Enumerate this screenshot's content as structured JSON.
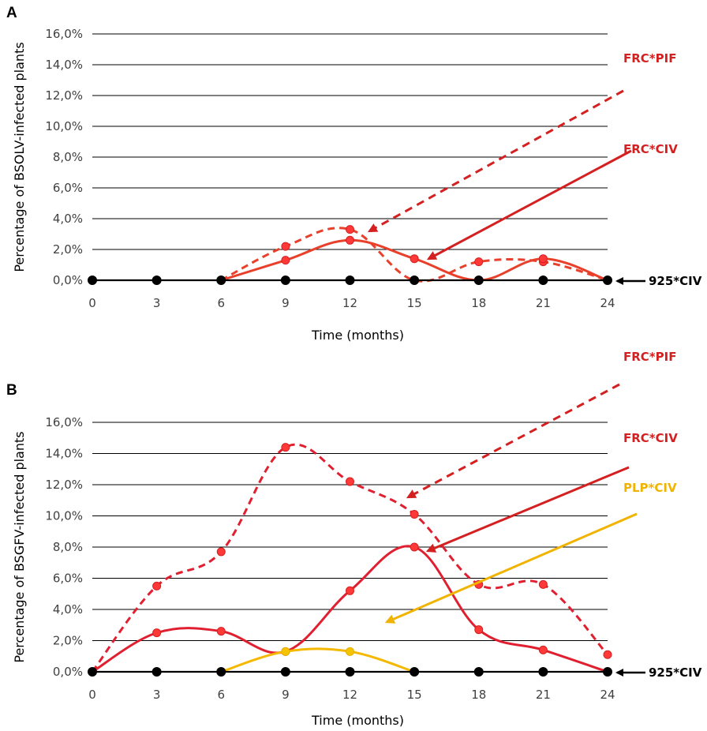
{
  "chart_data": [
    {
      "panel_label": "A",
      "type": "line",
      "ylabel": "Percentage of BSOLV-infected plants",
      "xlabel": "Time (months)",
      "categories": [
        "0",
        "3",
        "6",
        "9",
        "12",
        "15",
        "18",
        "21",
        "24"
      ],
      "y_ticks": [
        "0,0%",
        "2,0%",
        "4,0%",
        "6,0%",
        "8,0%",
        "10,0%",
        "12,0%",
        "14,0%",
        "16,0%"
      ],
      "ylim": [
        0,
        16
      ],
      "grid": true,
      "series": [
        {
          "name": "FRC*PIF",
          "color": "#e8402a",
          "dashed": true,
          "x": [
            6,
            9,
            12,
            15,
            18,
            21,
            24
          ],
          "values": [
            0.0,
            2.2,
            3.3,
            0.0,
            1.2,
            1.2,
            0.0
          ]
        },
        {
          "name": "FRC*CIV",
          "color": "#e8402a",
          "dashed": false,
          "x": [
            6,
            9,
            12,
            15,
            18,
            21,
            24
          ],
          "values": [
            0.0,
            1.3,
            2.6,
            1.4,
            0.0,
            1.4,
            0.0
          ]
        },
        {
          "name": "925*CIV",
          "color": "#000000",
          "dashed": false,
          "x": [
            0,
            3,
            6,
            9,
            12,
            15,
            18,
            21,
            24
          ],
          "values": [
            0,
            0,
            0,
            0,
            0,
            0,
            0,
            0,
            0
          ]
        }
      ],
      "legend_labels": [
        {
          "name": "FRC*PIF",
          "color": "#d42020"
        },
        {
          "name": "FRC*CIV",
          "color": "#d42020"
        },
        {
          "name": "925*CIV",
          "color": "#000000"
        }
      ]
    },
    {
      "panel_label": "B",
      "type": "line",
      "ylabel": "Percentage of BSGFV-infected plants",
      "xlabel": "Time (months)",
      "categories": [
        "0",
        "3",
        "6",
        "9",
        "12",
        "15",
        "18",
        "21",
        "24"
      ],
      "y_ticks": [
        "0,0%",
        "2,0%",
        "4,0%",
        "6,0%",
        "8,0%",
        "10,0%",
        "12,0%",
        "14,0%",
        "16,0%"
      ],
      "ylim": [
        0,
        16
      ],
      "grid": true,
      "series": [
        {
          "name": "FRC*PIF",
          "color": "#e02030",
          "dashed": true,
          "x": [
            0,
            3,
            6,
            9,
            12,
            15,
            18,
            21,
            24
          ],
          "values": [
            0.0,
            5.5,
            7.7,
            14.4,
            12.2,
            10.1,
            5.6,
            5.6,
            1.1
          ]
        },
        {
          "name": "FRC*CIV",
          "color": "#e02030",
          "dashed": false,
          "x": [
            0,
            3,
            6,
            9,
            12,
            15,
            18,
            21,
            24
          ],
          "values": [
            0.0,
            2.5,
            2.6,
            1.3,
            5.2,
            8.0,
            2.7,
            1.4,
            0.0
          ]
        },
        {
          "name": "PLP*CIV",
          "color": "#f5b800",
          "dashed": false,
          "x": [
            6,
            9,
            12,
            15
          ],
          "values": [
            0.0,
            1.3,
            1.3,
            0.0
          ]
        },
        {
          "name": "925*CIV",
          "color": "#000000",
          "dashed": false,
          "x": [
            0,
            3,
            6,
            9,
            12,
            15,
            18,
            21,
            24
          ],
          "values": [
            0,
            0,
            0,
            0,
            0,
            0,
            0,
            0,
            0
          ]
        }
      ],
      "legend_labels": [
        {
          "name": "FRC*PIF",
          "color": "#d42020"
        },
        {
          "name": "FRC*CIV",
          "color": "#d42020"
        },
        {
          "name": "PLP*CIV",
          "color": "#f0b400"
        },
        {
          "name": "925*CIV",
          "color": "#000000"
        }
      ]
    }
  ]
}
